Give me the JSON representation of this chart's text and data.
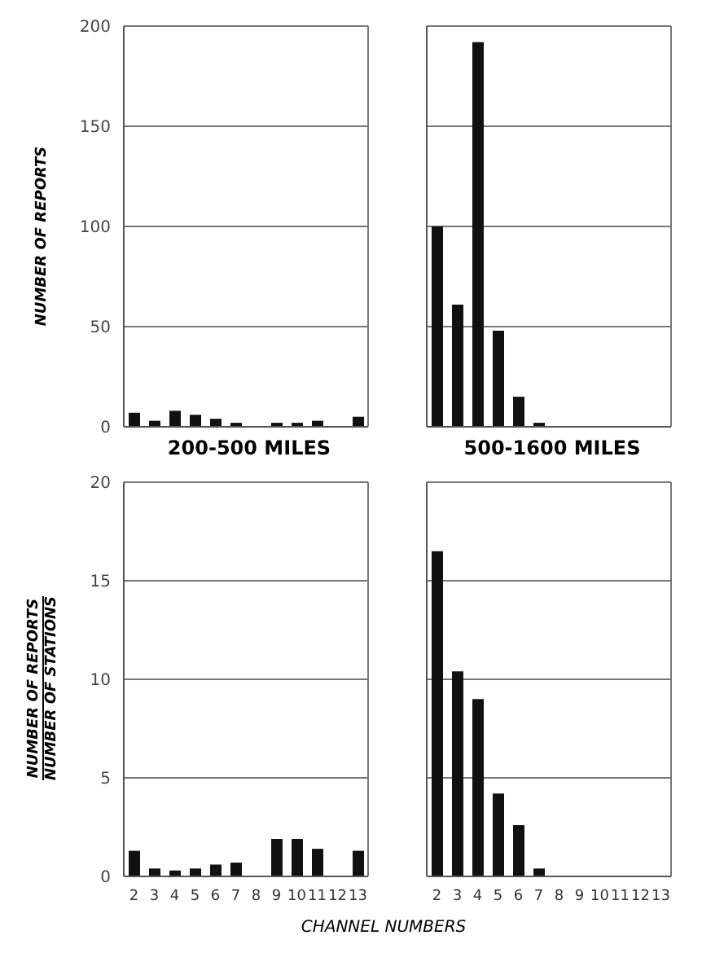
{
  "chart_data": [
    {
      "type": "bar",
      "title": "200-500 MILES",
      "ylabel": "NUMBER OF REPORTS",
      "categories": [
        "2",
        "3",
        "4",
        "5",
        "6",
        "7",
        "8",
        "9",
        "10",
        "11",
        "12",
        "13"
      ],
      "values": [
        7,
        3,
        8,
        6,
        4,
        2,
        0,
        2,
        2,
        3,
        0,
        5
      ],
      "color": "#111111",
      "ylim": [
        0,
        200
      ],
      "yticks": [
        0,
        50,
        100,
        150,
        200
      ],
      "grid": "y",
      "tick_labels": "y"
    },
    {
      "type": "bar",
      "title": "500-1600 MILES",
      "categories": [
        "2",
        "3",
        "4",
        "5",
        "6",
        "7",
        "8",
        "9",
        "10",
        "11",
        "12",
        "13"
      ],
      "values": [
        100,
        61,
        192,
        48,
        15,
        2,
        0,
        0,
        0,
        0,
        0,
        0
      ],
      "color": "#111111",
      "ylim": [
        0,
        200
      ],
      "yticks": [
        {
          "value": 0,
          "label": null
        },
        {
          "value": 50,
          "label": null
        },
        {
          "value": 100,
          "label": null
        },
        {
          "value": 150,
          "label": null
        },
        {
          "value": 200,
          "label": null
        }
      ],
      "grid": "y",
      "tick_labels": false
    },
    {
      "type": "bar",
      "ylabel": "NUMBER OF REPORTS\nNUMBER OF STATIONS",
      "xlabel": "CHANNEL NUMBERS",
      "categories": [
        "2",
        "3",
        "4",
        "5",
        "6",
        "7",
        "8",
        "9",
        "10",
        "11",
        "12",
        "13"
      ],
      "values": [
        1.3,
        0.4,
        0.3,
        0.4,
        0.6,
        0.7,
        0,
        1.9,
        1.9,
        1.4,
        0,
        1.3
      ],
      "color": "#111111",
      "ylim": [
        0,
        20
      ],
      "yticks": [
        0,
        5,
        10,
        15,
        20
      ],
      "grid": "y"
    },
    {
      "type": "bar",
      "categories": [
        "2",
        "3",
        "4",
        "5",
        "6",
        "7",
        "8",
        "9",
        "10",
        "11",
        "12",
        "13"
      ],
      "values": [
        16.5,
        10.4,
        9,
        4.2,
        2.6,
        0.4,
        0,
        0,
        0,
        0,
        0,
        0
      ],
      "color": "#111111",
      "ylim": [
        0,
        20
      ],
      "yticks": [
        {
          "value": 0,
          "label": null
        },
        {
          "value": 5,
          "label": null
        },
        {
          "value": 10,
          "label": null
        },
        {
          "value": 15,
          "label": null
        },
        {
          "value": 20,
          "label": null
        }
      ],
      "grid": "y",
      "tick_labels": "x"
    }
  ]
}
